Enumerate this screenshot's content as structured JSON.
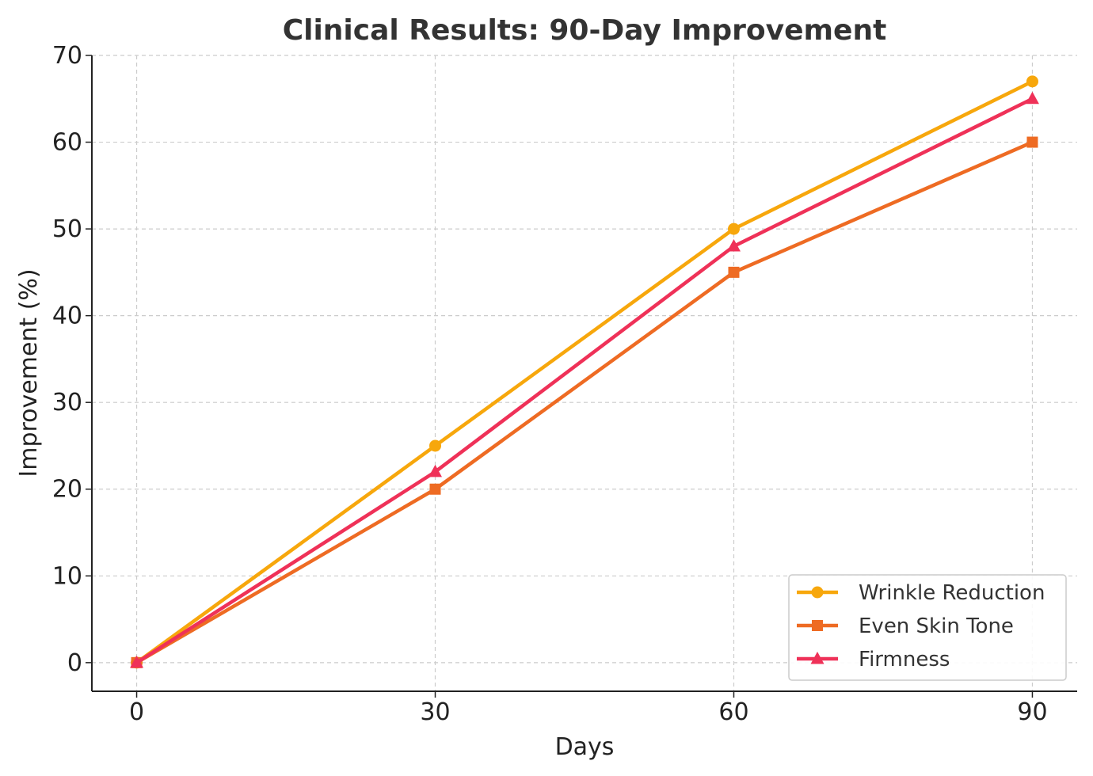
{
  "chart_data": {
    "type": "line",
    "title": "Clinical Results: 90-Day Improvement",
    "xlabel": "Days",
    "ylabel": "Improvement (%)",
    "x": [
      0,
      30,
      60,
      90
    ],
    "xticks": [
      "0",
      "30",
      "60",
      "90"
    ],
    "yticks": [
      "0",
      "10",
      "20",
      "30",
      "40",
      "50",
      "60",
      "70"
    ],
    "xlim": [
      -4.5,
      94.5
    ],
    "ylim": [
      -3.3,
      70
    ],
    "grid": true,
    "legend_position": "lower-right",
    "series": [
      {
        "name": "Wrinkle Reduction",
        "values": [
          0,
          25,
          50,
          67
        ],
        "color": "#F7A70C",
        "marker": "circle"
      },
      {
        "name": "Even Skin Tone",
        "values": [
          0,
          20,
          45,
          60
        ],
        "color": "#EE6B23",
        "marker": "square"
      },
      {
        "name": "Firmness",
        "values": [
          0,
          22,
          48,
          65
        ],
        "color": "#EF3158",
        "marker": "triangle"
      }
    ]
  }
}
